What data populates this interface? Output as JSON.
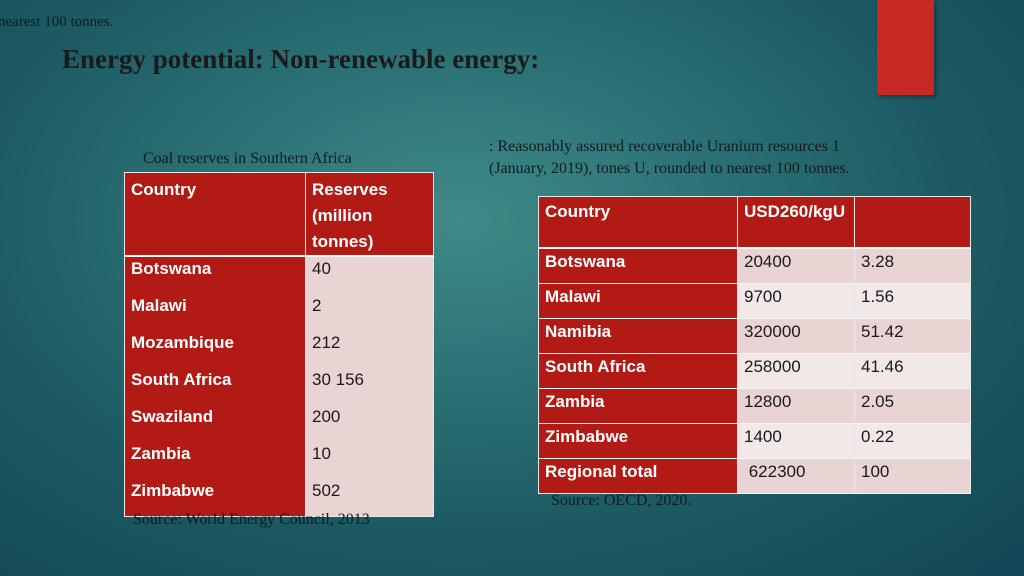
{
  "stray_text": "nearest 100 tonnes.",
  "title": "Energy potential: Non-renewable energy:",
  "coal": {
    "caption": "Coal reserves in Southern Africa",
    "headers": [
      "Country",
      "Reserves (million tonnes)"
    ],
    "rows": [
      [
        "Botswana",
        "40"
      ],
      [
        "Malawi",
        "2"
      ],
      [
        "Mozambique",
        "212"
      ],
      [
        "South Africa",
        "30 156"
      ],
      [
        "Swaziland",
        "200"
      ],
      [
        "Zambia",
        "10"
      ],
      [
        "Zimbabwe",
        "502"
      ]
    ],
    "source": "Source: World Energy Council, 2013"
  },
  "uranium": {
    "caption_line1": ": Reasonably assured recoverable Uranium resources 1",
    "caption_line2": "(January, 2019), tones U, rounded to nearest 100 tonnes.",
    "headers": [
      "Country",
      "USD260/kgU",
      ""
    ],
    "rows": [
      [
        "Botswana",
        "20400",
        "3.28"
      ],
      [
        "Malawi",
        "9700",
        "1.56"
      ],
      [
        "Namibia",
        "320000",
        "51.42"
      ],
      [
        "South Africa",
        "258000",
        "41.46"
      ],
      [
        "Zambia",
        "12800",
        "2.05"
      ],
      [
        "Zimbabwe",
        "1400",
        "0.22"
      ],
      [
        "Regional total",
        " 622300",
        "100"
      ]
    ],
    "source": "Source: OECD, 2020."
  },
  "colors": {
    "accent": "#c72a24",
    "table_header": "#b11a15",
    "cell_light": "#e9d3d3"
  }
}
